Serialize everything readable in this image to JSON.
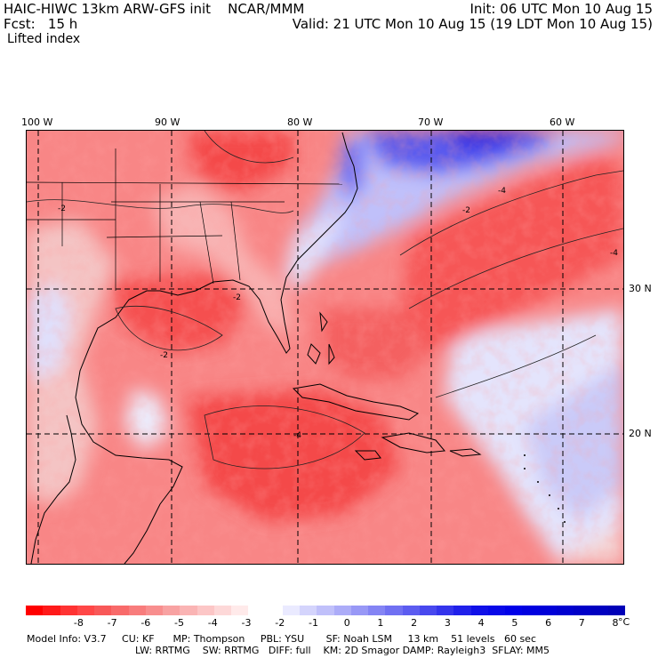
{
  "header": {
    "title_left": "HAIC-HIWC 13km ARW-GFS init    NCAR/MMM",
    "fcst": "Fcst:   15 h",
    "field": "Lifted index",
    "init": "Init: 06 UTC Mon 10 Aug 15",
    "valid": "Valid: 21 UTC Mon 10 Aug 15 (19 LDT Mon 10 Aug 15)"
  },
  "map": {
    "lon_labels": [
      "100 W",
      "90 W",
      "80 W",
      "70 W",
      "60 W"
    ],
    "lat_labels": [
      "30 N",
      "20 N"
    ],
    "contour_labels": [
      "-2",
      "-2",
      "-4",
      "-4",
      "-2",
      "-2",
      "-4"
    ],
    "colors": {
      "strong_red": "#ff2020",
      "mid_red": "#f86060",
      "light_red": "#f8a0a0",
      "pale_red": "#fcd0d0",
      "white": "#ffffff",
      "pale_blue": "#d8d8fc",
      "light_blue": "#a0a0f8",
      "mid_blue": "#6060f0",
      "deep_blue": "#0000e8"
    }
  },
  "colorbar": {
    "ticks": [
      "-8",
      "-7",
      "-6",
      "-5",
      "-4",
      "-3",
      "-2",
      "-1",
      "0",
      "1",
      "2",
      "3",
      "4",
      "5",
      "6",
      "7",
      "8"
    ],
    "unit": "°C",
    "colors": [
      "#ff0000",
      "#ff1a1a",
      "#ff3333",
      "#ff4747",
      "#f85858",
      "#f86a6a",
      "#f87c7c",
      "#f88e8e",
      "#f8a2a2",
      "#fab4b4",
      "#fcc6c6",
      "#fdd8d8",
      "#ffeaea",
      "#ffffff",
      "#ffffff",
      "#eaeaff",
      "#d4d4fc",
      "#c0c0fa",
      "#acacf8",
      "#9898f6",
      "#8484f4",
      "#7070f2",
      "#5c5cf0",
      "#4848ee",
      "#3434ec",
      "#2020ea",
      "#1010e8",
      "#0808e8",
      "#0000e8",
      "#0000e0",
      "#0000d8",
      "#0000d0",
      "#0000c8",
      "#0000c0",
      "#0000b8"
    ]
  },
  "model_info": {
    "line1": "Model Info: V3.7     CU: KF      MP: Thompson     PBL: YSU       SF: Noah LSM     13 km    51 levels   60 sec",
    "line2": "LW: RRTMG    SW: RRTMG   DIFF: full    KM: 2D Smagor DAMP: Rayleigh3  SFLAY: MM5"
  }
}
